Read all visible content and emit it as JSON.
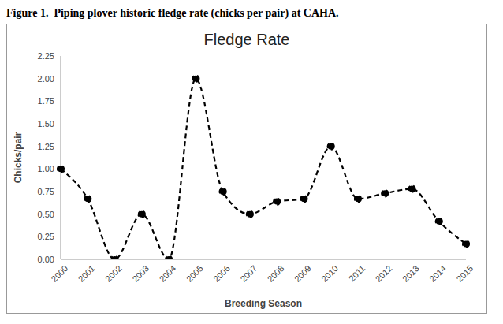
{
  "chart_data": {
    "type": "line",
    "caption": "Figure 1.  Piping plover historic fledge rate (chicks per pair) at CAHA.",
    "title": "Fledge Rate",
    "x_label": "Breeding Season",
    "y_label": "Chicks/pair",
    "categories": [
      "2000",
      "2001",
      "2002",
      "2003",
      "2004",
      "2005",
      "2006",
      "2007",
      "2008",
      "2009",
      "2010",
      "2011",
      "2012",
      "2013",
      "2014",
      "2015"
    ],
    "values": [
      1.0,
      0.67,
      0.0,
      0.5,
      0.0,
      2.0,
      0.75,
      0.5,
      0.64,
      0.67,
      1.25,
      0.67,
      0.73,
      0.78,
      0.42,
      0.17
    ],
    "color": "#000000",
    "marker": "circle",
    "line_style": "dashed",
    "grid": false,
    "ylim": [
      0,
      2.25
    ],
    "yticks": [
      {
        "value": 0,
        "label": "0.00"
      },
      {
        "value": 0.25,
        "label": "0.25"
      },
      {
        "value": 0.5,
        "label": "0.50"
      },
      {
        "value": 0.75,
        "label": "0.75"
      },
      {
        "value": 1,
        "label": "1.00"
      },
      {
        "value": 1.25,
        "label": "1.25"
      },
      {
        "value": 1.5,
        "label": "1.50"
      },
      {
        "value": 1.75,
        "label": "1.75"
      },
      {
        "value": 2,
        "label": "2.00"
      },
      {
        "value": 2.25,
        "label": "2.25"
      }
    ]
  }
}
